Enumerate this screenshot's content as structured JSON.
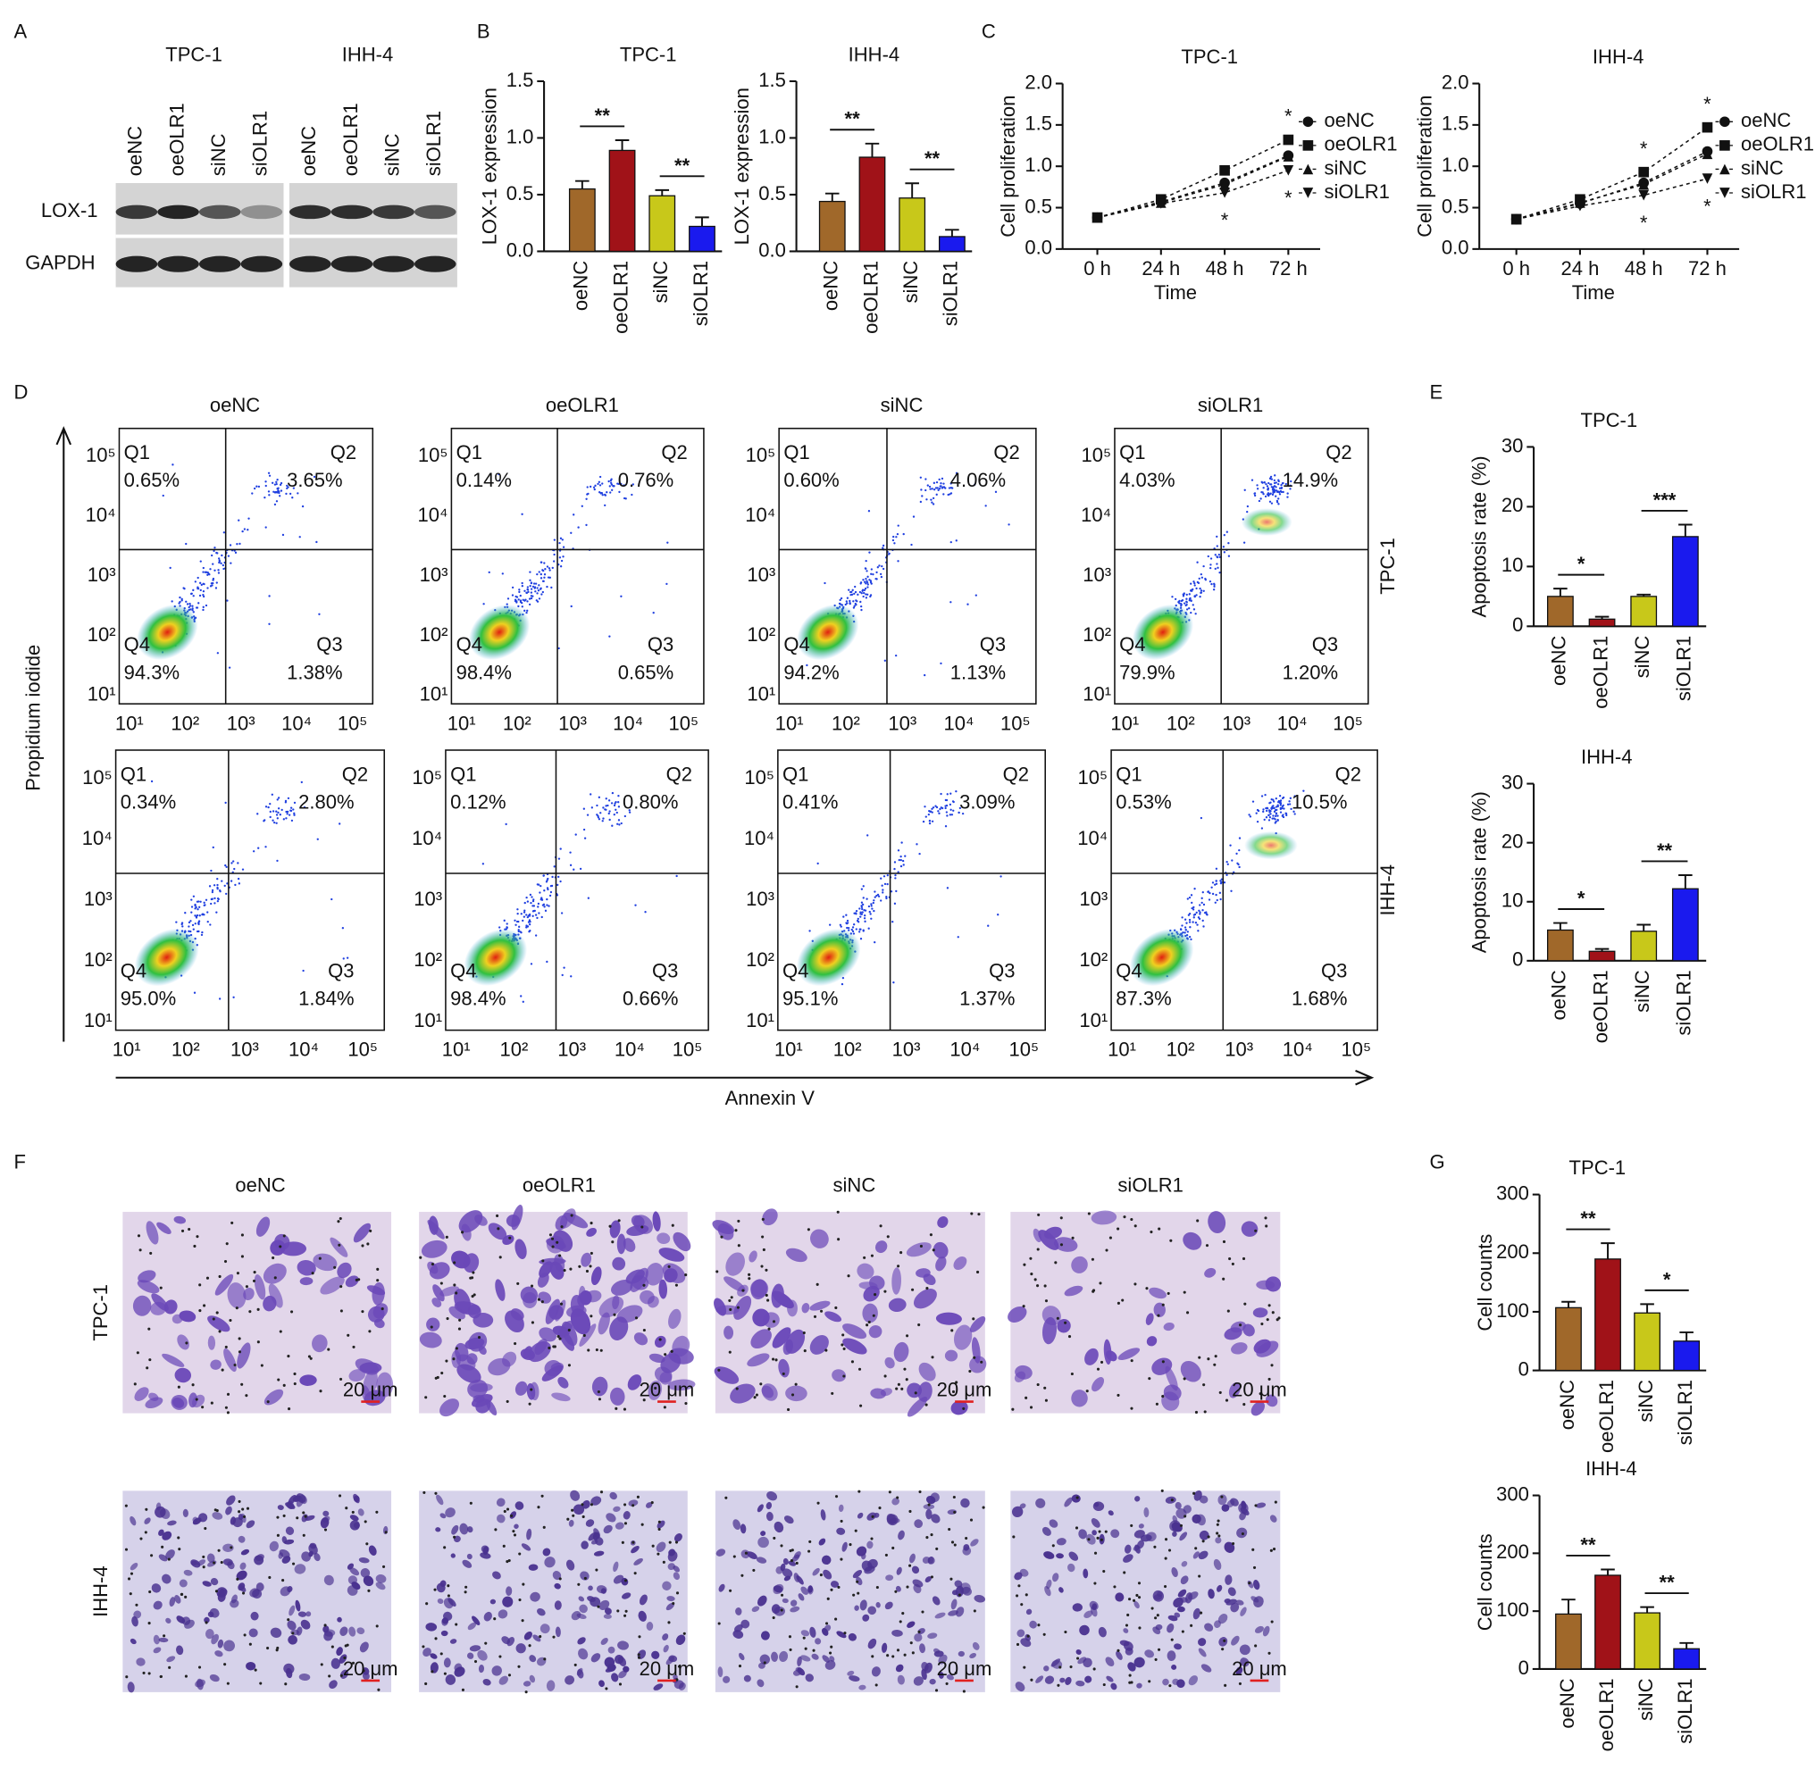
{
  "panel_labels": [
    "A",
    "B",
    "C",
    "D",
    "E",
    "F",
    "G"
  ],
  "blot": {
    "groups": [
      "TPC-1",
      "IHH-4"
    ],
    "lanes": [
      "oeNC",
      "oeOLR1",
      "siNC",
      "siOLR1"
    ],
    "proteins": [
      "LOX-1",
      "GAPDH"
    ]
  },
  "chart_data": [
    {
      "type": "bar",
      "title": "TPC-1",
      "ylabel": "LOX-1 expression",
      "categories": [
        "oeNC",
        "oeOLR1",
        "siNC",
        "siOLR1"
      ],
      "values": [
        0.55,
        0.89,
        0.49,
        0.22
      ],
      "errors": [
        0.07,
        0.09,
        0.05,
        0.08
      ],
      "colors": [
        "#a0682a",
        "#a01218",
        "#c8c81a",
        "#1a1aee"
      ],
      "ylim": [
        0,
        1.5
      ],
      "yticks": [
        {
          "value": 0,
          "label": "0.0"
        },
        {
          "value": 0.5,
          "label": "0.5"
        },
        {
          "value": 1,
          "label": "1.0"
        },
        {
          "value": 1.5,
          "label": "1.5"
        }
      ],
      "annotations": [
        {
          "text": "**",
          "between": [
            "oeNC",
            "oeOLR1"
          ]
        },
        {
          "text": "**",
          "between": [
            "siNC",
            "siOLR1"
          ]
        }
      ]
    },
    {
      "type": "bar",
      "title": "IHH-4",
      "ylabel": "LOX-1 expression",
      "categories": [
        "oeNC",
        "oeOLR1",
        "siNC",
        "siOLR1"
      ],
      "values": [
        0.44,
        0.83,
        0.47,
        0.13
      ],
      "errors": [
        0.07,
        0.12,
        0.13,
        0.06
      ],
      "colors": [
        "#a0682a",
        "#a01218",
        "#c8c81a",
        "#1a1aee"
      ],
      "ylim": [
        0,
        1.5
      ],
      "yticks": [
        {
          "value": 0,
          "label": "0.0"
        },
        {
          "value": 0.5,
          "label": "0.5"
        },
        {
          "value": 1,
          "label": "1.0"
        },
        {
          "value": 1.5,
          "label": "1.5"
        }
      ],
      "annotations": [
        {
          "text": "**",
          "between": [
            "oeNC",
            "oeOLR1"
          ]
        },
        {
          "text": "**",
          "between": [
            "siNC",
            "siOLR1"
          ]
        }
      ]
    },
    {
      "type": "line",
      "title": "TPC-1",
      "xlabel": "Time",
      "ylabel": "Cell proliferation",
      "categories": [
        "0 h",
        "24 h",
        "48 h",
        "72 h"
      ],
      "series": [
        {
          "name": "oeNC",
          "color": "#111111",
          "marker": "circle",
          "values": [
            0.38,
            0.57,
            0.8,
            1.13
          ]
        },
        {
          "name": "oeOLR1",
          "color": "#111111",
          "marker": "square",
          "values": [
            0.38,
            0.6,
            0.95,
            1.32
          ]
        },
        {
          "name": "siNC",
          "color": "#111111",
          "marker": "triangle",
          "values": [
            0.38,
            0.56,
            0.78,
            1.12
          ]
        },
        {
          "name": "siOLR1",
          "color": "#111111",
          "marker": "triangle-down",
          "values": [
            0.38,
            0.55,
            0.68,
            0.95
          ]
        }
      ],
      "ylim": [
        0,
        2
      ],
      "yticks": [
        {
          "value": 0,
          "label": "0.0"
        },
        {
          "value": 0.5,
          "label": "0.5"
        },
        {
          "value": 1,
          "label": "1.0"
        },
        {
          "value": 1.5,
          "label": "1.5"
        },
        {
          "value": 2,
          "label": "2.0"
        }
      ],
      "annotations": [
        {
          "text": "*",
          "category": "72 h",
          "series": "oeOLR1",
          "side": "above"
        },
        {
          "text": "*",
          "category": "48 h",
          "series": "siOLR1",
          "side": "below"
        },
        {
          "text": "*",
          "category": "72 h",
          "series": "siOLR1",
          "side": "below"
        }
      ]
    },
    {
      "type": "line",
      "title": "IHH-4",
      "xlabel": "Time",
      "ylabel": "Cell proliferation",
      "categories": [
        "0 h",
        "24 h",
        "48 h",
        "72 h"
      ],
      "series": [
        {
          "name": "oeNC",
          "color": "#111111",
          "marker": "circle",
          "values": [
            0.36,
            0.55,
            0.8,
            1.18
          ]
        },
        {
          "name": "oeOLR1",
          "color": "#111111",
          "marker": "square",
          "values": [
            0.36,
            0.6,
            0.93,
            1.47
          ]
        },
        {
          "name": "siNC",
          "color": "#111111",
          "marker": "triangle",
          "values": [
            0.36,
            0.56,
            0.78,
            1.15
          ]
        },
        {
          "name": "siOLR1",
          "color": "#111111",
          "marker": "triangle-down",
          "values": [
            0.36,
            0.52,
            0.65,
            0.85
          ]
        }
      ],
      "ylim": [
        0,
        2
      ],
      "yticks": [
        {
          "value": 0,
          "label": "0.0"
        },
        {
          "value": 0.5,
          "label": "0.5"
        },
        {
          "value": 1,
          "label": "1.0"
        },
        {
          "value": 1.5,
          "label": "1.5"
        },
        {
          "value": 2,
          "label": "2.0"
        }
      ],
      "annotations": [
        {
          "text": "*",
          "category": "48 h",
          "series": "oeOLR1",
          "side": "above"
        },
        {
          "text": "*",
          "category": "72 h",
          "series": "oeOLR1",
          "side": "above"
        },
        {
          "text": "*",
          "category": "48 h",
          "series": "siOLR1",
          "side": "below"
        },
        {
          "text": "*",
          "category": "72 h",
          "series": "siOLR1",
          "side": "below"
        }
      ]
    },
    {
      "type": "bar",
      "title": "TPC-1",
      "ylabel": "Apoptosis rate (%)",
      "categories": [
        "oeNC",
        "oeOLR1",
        "siNC",
        "siOLR1"
      ],
      "values": [
        5.0,
        1.2,
        5.0,
        15.0
      ],
      "errors": [
        1.3,
        0.4,
        0.3,
        2.0
      ],
      "colors": [
        "#a0682a",
        "#a01218",
        "#c8c81a",
        "#1a1aee"
      ],
      "ylim": [
        0,
        30
      ],
      "yticks": [
        0,
        10,
        20,
        30
      ],
      "annotations": [
        {
          "text": "*",
          "between": [
            "oeNC",
            "oeOLR1"
          ]
        },
        {
          "text": "***",
          "between": [
            "siNC",
            "siOLR1"
          ]
        }
      ]
    },
    {
      "type": "bar",
      "title": "IHH-4",
      "ylabel": "Apoptosis rate (%)",
      "categories": [
        "oeNC",
        "oeOLR1",
        "siNC",
        "siOLR1"
      ],
      "values": [
        5.2,
        1.6,
        5.0,
        12.2
      ],
      "errors": [
        1.2,
        0.4,
        1.1,
        2.3
      ],
      "colors": [
        "#a0682a",
        "#a01218",
        "#c8c81a",
        "#1a1aee"
      ],
      "ylim": [
        0,
        30
      ],
      "yticks": [
        0,
        10,
        20,
        30
      ],
      "annotations": [
        {
          "text": "*",
          "between": [
            "oeNC",
            "oeOLR1"
          ]
        },
        {
          "text": "**",
          "between": [
            "siNC",
            "siOLR1"
          ]
        }
      ]
    },
    {
      "type": "bar",
      "title": "TPC-1",
      "ylabel": "Cell counts",
      "categories": [
        "oeNC",
        "oeOLR1",
        "siNC",
        "siOLR1"
      ],
      "values": [
        107,
        190,
        98,
        50
      ],
      "errors": [
        10,
        27,
        15,
        15
      ],
      "colors": [
        "#a0682a",
        "#a01218",
        "#c8c81a",
        "#1a1aee"
      ],
      "ylim": [
        0,
        300
      ],
      "yticks": [
        0,
        100,
        200,
        300
      ],
      "annotations": [
        {
          "text": "**",
          "between": [
            "oeNC",
            "oeOLR1"
          ]
        },
        {
          "text": "*",
          "between": [
            "siNC",
            "siOLR1"
          ]
        }
      ]
    },
    {
      "type": "bar",
      "title": "IHH-4",
      "ylabel": "Cell counts",
      "categories": [
        "oeNC",
        "oeOLR1",
        "siNC",
        "siOLR1"
      ],
      "values": [
        95,
        162,
        97,
        35
      ],
      "errors": [
        25,
        10,
        10,
        10
      ],
      "colors": [
        "#a0682a",
        "#a01218",
        "#c8c81a",
        "#1a1aee"
      ],
      "ylim": [
        0,
        300
      ],
      "yticks": [
        0,
        100,
        200,
        300
      ],
      "annotations": [
        {
          "text": "**",
          "between": [
            "oeNC",
            "oeOLR1"
          ]
        },
        {
          "text": "**",
          "between": [
            "siNC",
            "siOLR1"
          ]
        }
      ]
    }
  ],
  "flow": {
    "columns": [
      "oeNC",
      "oeOLR1",
      "siNC",
      "siOLR1"
    ],
    "rows": [
      "TPC-1",
      "IHH-4"
    ],
    "quadrants": [
      "Q1",
      "Q2",
      "Q3",
      "Q4"
    ],
    "ticks": [
      "10¹",
      "10²",
      "10³",
      "10⁴",
      "10⁵"
    ],
    "xlabel": "Annexin V",
    "ylabel": "Propidium iodide",
    "plots": [
      [
        [
          "0.65%",
          "3.65%",
          "1.38%",
          "94.3%"
        ],
        [
          "0.14%",
          "0.76%",
          "0.65%",
          "98.4%"
        ],
        [
          "0.60%",
          "4.06%",
          "1.13%",
          "94.2%"
        ],
        [
          "4.03%",
          "14.9%",
          "1.20%",
          "79.9%"
        ]
      ],
      [
        [
          "0.34%",
          "2.80%",
          "1.84%",
          "95.0%"
        ],
        [
          "0.12%",
          "0.80%",
          "0.66%",
          "98.4%"
        ],
        [
          "0.41%",
          "3.09%",
          "1.37%",
          "95.1%"
        ],
        [
          "0.53%",
          "10.5%",
          "1.68%",
          "87.3%"
        ]
      ]
    ]
  },
  "transwell": {
    "columns": [
      "oeNC",
      "oeOLR1",
      "siNC",
      "siOLR1"
    ],
    "rows": [
      "TPC-1",
      "IHH-4"
    ],
    "scale_bar": "20 μm"
  }
}
